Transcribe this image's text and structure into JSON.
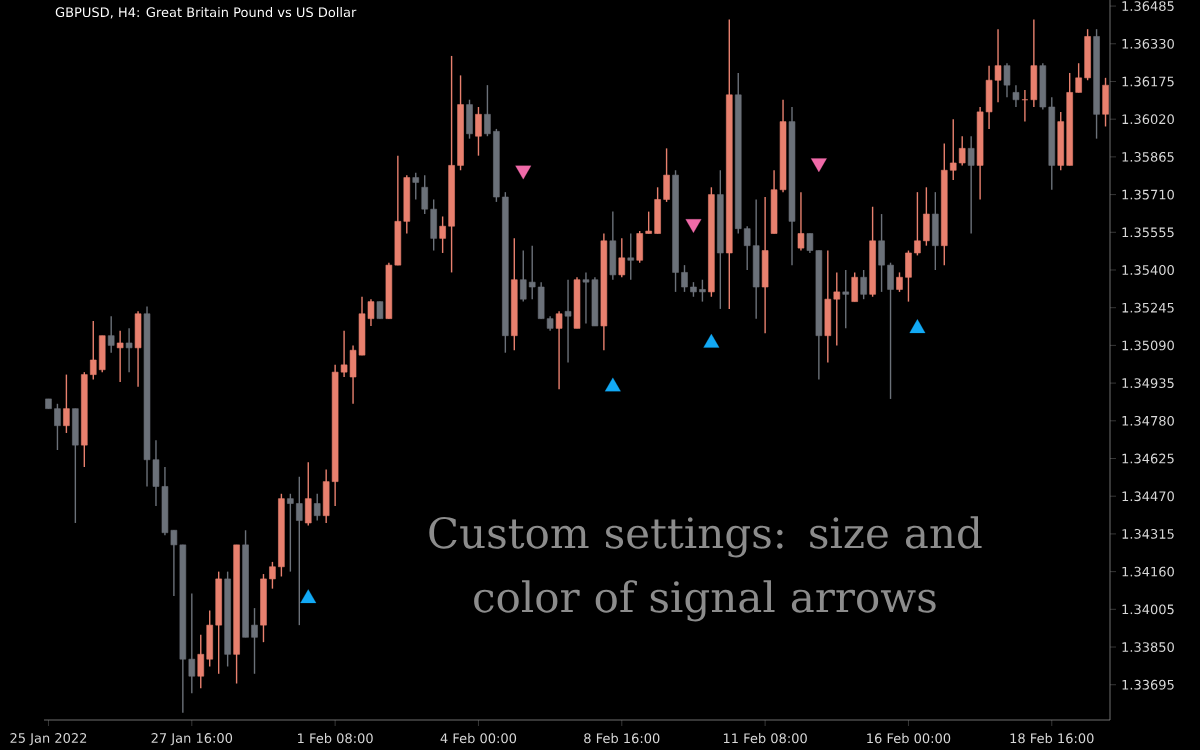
{
  "chart_data": {
    "type": "candlestick",
    "title": "GBPUSD, H4:  Great Britain Pound vs US Dollar",
    "annotations": [
      "Custom settings: size and color of signal arrows"
    ],
    "categories": [
      "25 Jan 2022",
      null,
      null,
      null,
      null,
      null,
      null,
      null,
      null,
      null,
      null,
      null,
      null,
      null,
      null,
      null,
      "27 Jan 16:00",
      null,
      null,
      null,
      null,
      null,
      null,
      null,
      null,
      null,
      null,
      null,
      null,
      null,
      null,
      null,
      "1 Feb 08:00",
      null,
      null,
      null,
      null,
      null,
      null,
      null,
      null,
      null,
      null,
      null,
      null,
      null,
      null,
      null,
      "4 Feb 00:00",
      null,
      null,
      null,
      null,
      null,
      null,
      null,
      null,
      null,
      null,
      null,
      null,
      null,
      null,
      null,
      "8 Feb 16:00",
      null,
      null,
      null,
      null,
      null,
      null,
      null,
      null,
      null,
      null,
      null,
      null,
      null,
      null,
      null,
      "11 Feb 08:00",
      null,
      null,
      null,
      null,
      null,
      null,
      null,
      null,
      null,
      null,
      null,
      null,
      null,
      null,
      null,
      "16 Feb 00:00",
      null,
      null,
      null,
      null,
      null,
      null,
      null,
      null,
      null,
      null,
      null,
      null,
      null,
      null,
      null,
      "18 Feb 16:00",
      null,
      null,
      null,
      null,
      null,
      null
    ],
    "ohlc": [
      [
        1.3487,
        1.3487,
        1.3483,
        1.3483
      ],
      [
        1.3483,
        1.3485,
        1.3466,
        1.3476
      ],
      [
        1.3476,
        1.3497,
        1.3473,
        1.3483
      ],
      [
        1.3483,
        1.3483,
        1.3436,
        1.3468
      ],
      [
        1.3468,
        1.3498,
        1.3459,
        1.3497
      ],
      [
        1.3497,
        1.3519,
        1.3495,
        1.3503
      ],
      [
        1.3499,
        1.3513,
        1.3498,
        1.3513
      ],
      [
        1.3513,
        1.3521,
        1.3506,
        1.3509
      ],
      [
        1.3508,
        1.3515,
        1.3494,
        1.351
      ],
      [
        1.351,
        1.3516,
        1.3498,
        1.3508
      ],
      [
        1.3508,
        1.3523,
        1.3492,
        1.3522
      ],
      [
        1.3522,
        1.3525,
        1.3451,
        1.3462
      ],
      [
        1.3462,
        1.347,
        1.3443,
        1.3451
      ],
      [
        1.3451,
        1.3459,
        1.3431,
        1.3432
      ],
      [
        1.3433,
        1.3433,
        1.3406,
        1.3427
      ],
      [
        1.3427,
        1.3427,
        1.3358,
        1.338
      ],
      [
        1.338,
        1.3407,
        1.3366,
        1.3373
      ],
      [
        1.3373,
        1.339,
        1.3368,
        1.3382
      ],
      [
        1.338,
        1.34,
        1.3377,
        1.3394
      ],
      [
        1.3394,
        1.3416,
        1.3374,
        1.3413
      ],
      [
        1.3413,
        1.3416,
        1.3377,
        1.3382
      ],
      [
        1.3382,
        1.3427,
        1.337,
        1.3427
      ],
      [
        1.3427,
        1.3433,
        1.3389,
        1.3389
      ],
      [
        1.3394,
        1.3401,
        1.3374,
        1.3389
      ],
      [
        1.3394,
        1.3415,
        1.3387,
        1.3413
      ],
      [
        1.3413,
        1.342,
        1.3409,
        1.3418
      ],
      [
        1.3418,
        1.3448,
        1.3414,
        1.3446
      ],
      [
        1.3446,
        1.3448,
        1.3416,
        1.3444
      ],
      [
        1.3444,
        1.3455,
        1.3394,
        1.3437
      ],
      [
        1.3436,
        1.3461,
        1.3435,
        1.3446
      ],
      [
        1.3444,
        1.3448,
        1.3437,
        1.3439
      ],
      [
        1.3439,
        1.3458,
        1.3436,
        1.3453
      ],
      [
        1.3453,
        1.3501,
        1.3443,
        1.3498
      ],
      [
        1.3498,
        1.3515,
        1.3496,
        1.3501
      ],
      [
        1.3496,
        1.3509,
        1.3485,
        1.3507
      ],
      [
        1.3505,
        1.3529,
        1.3505,
        1.3522
      ],
      [
        1.352,
        1.3528,
        1.3517,
        1.3527
      ],
      [
        1.3527,
        1.3527,
        1.352,
        1.352
      ],
      [
        1.352,
        1.3543,
        1.352,
        1.3542
      ],
      [
        1.3542,
        1.3587,
        1.3542,
        1.356
      ],
      [
        1.356,
        1.3579,
        1.3555,
        1.3578
      ],
      [
        1.3578,
        1.358,
        1.3569,
        1.3576
      ],
      [
        1.3574,
        1.3579,
        1.3563,
        1.3565
      ],
      [
        1.3565,
        1.3569,
        1.3548,
        1.3553
      ],
      [
        1.3553,
        1.3562,
        1.3547,
        1.3558
      ],
      [
        1.3558,
        1.3628,
        1.3539,
        1.3583
      ],
      [
        1.3583,
        1.362,
        1.3581,
        1.3608
      ],
      [
        1.3608,
        1.361,
        1.3594,
        1.3596
      ],
      [
        1.3595,
        1.3607,
        1.3587,
        1.3604
      ],
      [
        1.3604,
        1.3616,
        1.3595,
        1.3596
      ],
      [
        1.3597,
        1.3598,
        1.3568,
        1.357
      ],
      [
        1.357,
        1.3572,
        1.3506,
        1.3513
      ],
      [
        1.3513,
        1.3553,
        1.3507,
        1.3536
      ],
      [
        1.3536,
        1.3548,
        1.3527,
        1.3528
      ],
      [
        1.3535,
        1.355,
        1.3528,
        1.3533
      ],
      [
        1.3533,
        1.3535,
        1.352,
        1.352
      ],
      [
        1.352,
        1.3521,
        1.3515,
        1.3516
      ],
      [
        1.3516,
        1.3523,
        1.3491,
        1.3522
      ],
      [
        1.3523,
        1.3536,
        1.3502,
        1.3521
      ],
      [
        1.3516,
        1.3537,
        1.3516,
        1.3536
      ],
      [
        1.3536,
        1.3539,
        1.3518,
        1.3535
      ],
      [
        1.3536,
        1.3537,
        1.3517,
        1.3517
      ],
      [
        1.3517,
        1.3555,
        1.3507,
        1.3552
      ],
      [
        1.3552,
        1.3564,
        1.3536,
        1.3538
      ],
      [
        1.3538,
        1.3553,
        1.3537,
        1.3545
      ],
      [
        1.3545,
        1.3555,
        1.3536,
        1.3544
      ],
      [
        1.3544,
        1.3556,
        1.3543,
        1.3555
      ],
      [
        1.3555,
        1.3564,
        1.3555,
        1.3556
      ],
      [
        1.3555,
        1.3574,
        1.3555,
        1.3569
      ],
      [
        1.3569,
        1.359,
        1.3568,
        1.3579
      ],
      [
        1.3579,
        1.3581,
        1.3531,
        1.3539
      ],
      [
        1.3539,
        1.3542,
        1.3531,
        1.3533
      ],
      [
        1.3533,
        1.3535,
        1.3529,
        1.3531
      ],
      [
        1.3532,
        1.3536,
        1.3527,
        1.3531
      ],
      [
        1.3531,
        1.3574,
        1.3529,
        1.3571
      ],
      [
        1.3571,
        1.3581,
        1.3524,
        1.3547
      ],
      [
        1.3547,
        1.3643,
        1.3524,
        1.3612
      ],
      [
        1.3612,
        1.3621,
        1.3555,
        1.3557
      ],
      [
        1.3557,
        1.3558,
        1.354,
        1.355
      ],
      [
        1.355,
        1.3569,
        1.352,
        1.3533
      ],
      [
        1.3533,
        1.357,
        1.3514,
        1.3548
      ],
      [
        1.3555,
        1.3581,
        1.3555,
        1.3573
      ],
      [
        1.3573,
        1.361,
        1.3572,
        1.3601
      ],
      [
        1.3601,
        1.3607,
        1.3542,
        1.356
      ],
      [
        1.3549,
        1.3572,
        1.3548,
        1.3555
      ],
      [
        1.3555,
        1.3555,
        1.3547,
        1.3548
      ],
      [
        1.3548,
        1.3548,
        1.3495,
        1.3513
      ],
      [
        1.3513,
        1.3548,
        1.3502,
        1.3528
      ],
      [
        1.3528,
        1.3539,
        1.3509,
        1.3531
      ],
      [
        1.3531,
        1.354,
        1.3516,
        1.353
      ],
      [
        1.3527,
        1.3539,
        1.3527,
        1.3537
      ],
      [
        1.3537,
        1.354,
        1.3528,
        1.353
      ],
      [
        1.353,
        1.3566,
        1.3529,
        1.3552
      ],
      [
        1.3552,
        1.3563,
        1.3531,
        1.3542
      ],
      [
        1.3542,
        1.3543,
        1.3487,
        1.3532
      ],
      [
        1.3532,
        1.3539,
        1.3531,
        1.3537
      ],
      [
        1.3537,
        1.3548,
        1.3527,
        1.3547
      ],
      [
        1.3547,
        1.3572,
        1.3546,
        1.3552
      ],
      [
        1.3552,
        1.3574,
        1.355,
        1.3563
      ],
      [
        1.3563,
        1.3572,
        1.354,
        1.355
      ],
      [
        1.355,
        1.3592,
        1.3542,
        1.3581
      ],
      [
        1.3581,
        1.3602,
        1.3577,
        1.3584
      ],
      [
        1.3584,
        1.3595,
        1.3583,
        1.359
      ],
      [
        1.359,
        1.3595,
        1.3555,
        1.3583
      ],
      [
        1.3583,
        1.3607,
        1.3569,
        1.3605
      ],
      [
        1.3605,
        1.3624,
        1.3598,
        1.3618
      ],
      [
        1.3618,
        1.3639,
        1.3609,
        1.3624
      ],
      [
        1.3624,
        1.3625,
        1.3611,
        1.3616
      ],
      [
        1.3613,
        1.3616,
        1.3607,
        1.361
      ],
      [
        1.361,
        1.3614,
        1.3601,
        1.361
      ],
      [
        1.361,
        1.3643,
        1.3607,
        1.3624
      ],
      [
        1.3624,
        1.3625,
        1.3606,
        1.3607
      ],
      [
        1.3607,
        1.3611,
        1.3573,
        1.3583
      ],
      [
        1.3583,
        1.3605,
        1.3581,
        1.3601
      ],
      [
        1.3583,
        1.3621,
        1.3583,
        1.3613
      ],
      [
        1.3613,
        1.3625,
        1.3613,
        1.3619
      ],
      [
        1.3619,
        1.3639,
        1.3618,
        1.3636
      ],
      [
        1.3636,
        1.3639,
        1.3594,
        1.3604
      ],
      [
        1.3604,
        1.3619,
        1.3599,
        1.3616
      ]
    ],
    "colors": [
      "#6b7179",
      "#6b7179",
      "#e8806e",
      "#6b7179",
      "#e8806e",
      "#e8806e",
      "#e8806e",
      "#6b7179",
      "#e8806e",
      "#6b7179",
      "#e8806e",
      "#6b7179",
      "#6b7179",
      "#6b7179",
      "#6b7179",
      "#6b7179",
      "#6b7179",
      "#e8806e",
      "#e8806e",
      "#e8806e",
      "#6b7179",
      "#e8806e",
      "#6b7179",
      "#6b7179",
      "#e8806e",
      "#e8806e",
      "#e8806e",
      "#6b7179",
      "#6b7179",
      "#e8806e",
      "#6b7179",
      "#e8806e",
      "#e8806e",
      "#e8806e",
      "#e8806e",
      "#e8806e",
      "#e8806e",
      "#6b7179",
      "#e8806e",
      "#e8806e",
      "#e8806e",
      "#6b7179",
      "#6b7179",
      "#6b7179",
      "#e8806e",
      "#e8806e",
      "#e8806e",
      "#6b7179",
      "#e8806e",
      "#6b7179",
      "#6b7179",
      "#6b7179",
      "#e8806e",
      "#6b7179",
      "#6b7179",
      "#6b7179",
      "#6b7179",
      "#e8806e",
      "#6b7179",
      "#e8806e",
      "#6b7179",
      "#6b7179",
      "#e8806e",
      "#6b7179",
      "#e8806e",
      "#6b7179",
      "#e8806e",
      "#e8806e",
      "#e8806e",
      "#e8806e",
      "#6b7179",
      "#6b7179",
      "#6b7179",
      "#6b7179",
      "#e8806e",
      "#6b7179",
      "#e8806e",
      "#6b7179",
      "#6b7179",
      "#6b7179",
      "#e8806e",
      "#e8806e",
      "#e8806e",
      "#6b7179",
      "#e8806e",
      "#6b7179",
      "#6b7179",
      "#e8806e",
      "#e8806e",
      "#6b7179",
      "#e8806e",
      "#6b7179",
      "#e8806e",
      "#6b7179",
      "#6b7179",
      "#e8806e",
      "#e8806e",
      "#e8806e",
      "#e8806e",
      "#6b7179",
      "#e8806e",
      "#e8806e",
      "#e8806e",
      "#6b7179",
      "#e8806e",
      "#e8806e",
      "#e8806e",
      "#6b7179",
      "#6b7179",
      "#e8806e",
      "#e8806e",
      "#6b7179",
      "#6b7179",
      "#e8806e",
      "#e8806e",
      "#e8806e",
      "#e8806e",
      "#6b7179",
      "#e8806e"
    ],
    "series": [
      {
        "type": "scatter",
        "color": "#12a9f5",
        "marker": "triangle",
        "values": [
          null,
          null,
          null,
          null,
          null,
          null,
          null,
          null,
          null,
          null,
          null,
          null,
          null,
          null,
          null,
          null,
          null,
          null,
          null,
          null,
          null,
          null,
          null,
          null,
          null,
          null,
          null,
          null,
          null,
          1.3405,
          null,
          null,
          null,
          null,
          null,
          null,
          null,
          null,
          null,
          null,
          null,
          null,
          null,
          null,
          null,
          null,
          null,
          null,
          null,
          null,
          null,
          null,
          null,
          null,
          null,
          null,
          null,
          null,
          null,
          null,
          null,
          null,
          null,
          1.3492,
          null,
          null,
          null,
          null,
          null,
          null,
          null,
          null,
          null,
          null,
          1.351,
          null,
          null,
          null,
          null,
          null,
          null,
          null,
          null,
          null,
          null,
          null,
          null,
          null,
          null,
          null,
          null,
          null,
          null,
          null,
          null,
          null,
          null,
          1.3516,
          null,
          null,
          null,
          null,
          null,
          null,
          null,
          null,
          null,
          null,
          null,
          null,
          null,
          null,
          null,
          null,
          null,
          null,
          null,
          null,
          null
        ]
      },
      {
        "type": "scatter",
        "color": "#f06aa8",
        "marker": "triangle",
        "values": [
          null,
          null,
          null,
          null,
          null,
          null,
          null,
          null,
          null,
          null,
          null,
          null,
          null,
          null,
          null,
          null,
          null,
          null,
          null,
          null,
          null,
          null,
          null,
          null,
          null,
          null,
          null,
          null,
          null,
          null,
          null,
          null,
          null,
          null,
          null,
          null,
          null,
          null,
          null,
          null,
          null,
          null,
          null,
          null,
          null,
          null,
          null,
          null,
          null,
          null,
          null,
          null,
          null,
          1.3581,
          null,
          null,
          null,
          null,
          null,
          null,
          null,
          null,
          null,
          null,
          null,
          null,
          null,
          null,
          null,
          null,
          null,
          null,
          1.3559,
          null,
          null,
          null,
          null,
          null,
          null,
          null,
          null,
          null,
          null,
          null,
          null,
          null,
          1.3584,
          null,
          null,
          null,
          null,
          null,
          null,
          null,
          null,
          null,
          null,
          null,
          null,
          null,
          null,
          null,
          null,
          null,
          null,
          null,
          null,
          null,
          null,
          null,
          null,
          null,
          null,
          null,
          null,
          null,
          null,
          null,
          null
        ]
      }
    ],
    "ylim": [
      1.3355,
      1.3651
    ],
    "yticks": [
      {
        "value": 1.36485,
        "label": "1.36485"
      },
      {
        "value": 1.3633,
        "label": "1.36330"
      },
      {
        "value": 1.36175,
        "label": "1.36175"
      },
      {
        "value": 1.3602,
        "label": "1.36020"
      },
      {
        "value": 1.35865,
        "label": "1.35865"
      },
      {
        "value": 1.3571,
        "label": "1.35710"
      },
      {
        "value": 1.35555,
        "label": "1.35555"
      },
      {
        "value": 1.354,
        "label": "1.35400"
      },
      {
        "value": 1.35245,
        "label": "1.35245"
      },
      {
        "value": 1.3509,
        "label": "1.35090"
      },
      {
        "value": 1.34935,
        "label": "1.34935"
      },
      {
        "value": 1.3478,
        "label": "1.34780"
      },
      {
        "value": 1.34625,
        "label": "1.34625"
      },
      {
        "value": 1.3447,
        "label": "1.34470"
      },
      {
        "value": 1.34315,
        "label": "1.34315"
      },
      {
        "value": 1.3416,
        "label": "1.34160"
      },
      {
        "value": 1.34005,
        "label": "1.34005"
      },
      {
        "value": 1.3385,
        "label": "1.33850"
      },
      {
        "value": 1.33695,
        "label": "1.33695"
      }
    ]
  }
}
